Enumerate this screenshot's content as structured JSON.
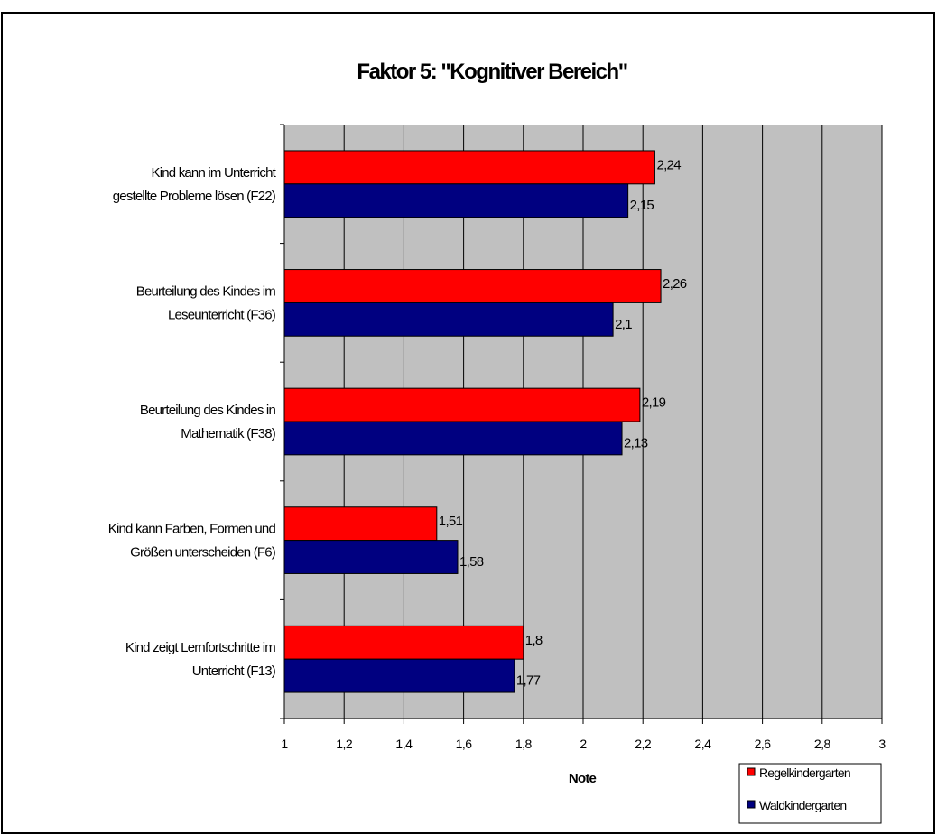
{
  "chart_data": {
    "type": "bar",
    "orientation": "horizontal",
    "title": "Faktor 5: \"Kognitiver Bereich\"",
    "xlabel": "Note",
    "ylabel": "",
    "xlim": [
      1,
      3
    ],
    "xticks": [
      "1",
      "1,2",
      "1,4",
      "1,6",
      "1,8",
      "2",
      "2,2",
      "2,4",
      "2,6",
      "2,8",
      "3"
    ],
    "grid": true,
    "legend_position": "bottom-right",
    "categories": [
      [
        "Kind kann im Unterricht",
        "gestellte Probleme lösen (F22)"
      ],
      [
        "Beurteilung des Kindes im",
        "Leseunterricht (F36)"
      ],
      [
        "Beurteilung des Kindes in",
        "Mathematik (F38)"
      ],
      [
        "Kind kann Farben, Formen und",
        "Größen unterscheiden (F6)"
      ],
      [
        "Kind zeigt Lernfortschritte im",
        "Unterricht (F13)"
      ]
    ],
    "series": [
      {
        "name": "Regelkindergarten",
        "color": "#ff0000",
        "values": [
          2.24,
          2.26,
          2.19,
          1.51,
          1.8
        ],
        "labels": [
          "2,24",
          "2,26",
          "2,19",
          "1,51",
          "1,8"
        ]
      },
      {
        "name": "Waldkindergarten",
        "color": "#000080",
        "values": [
          2.15,
          2.1,
          2.13,
          1.58,
          1.77
        ],
        "labels": [
          "2,15",
          "2,1",
          "2,13",
          "1,58",
          "1,77"
        ]
      }
    ],
    "plot_background": "#c0c0c0"
  }
}
